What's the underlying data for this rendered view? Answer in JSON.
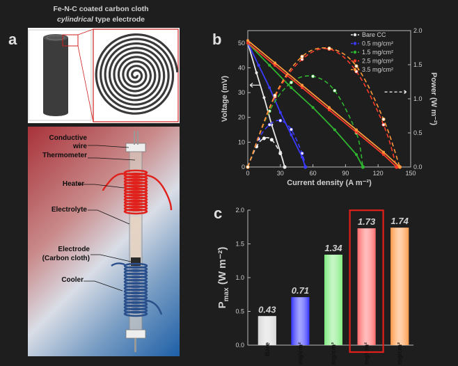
{
  "panel_a": {
    "letter": "a",
    "title_line1": "Fe-N-C coated carbon cloth",
    "title_line2_italic": "cylindrical",
    "title_line2_rest": " type electrode",
    "labels": {
      "wire": "Conductive",
      "wire2": "wire",
      "thermometer": "Thermometer",
      "heater": "Heater",
      "electrolyte": "Electrolyte",
      "electrode": "Electrode",
      "electrode2": "(Carbon cloth)",
      "cooler": "Cooler"
    },
    "colors": {
      "heater": "#e0201a",
      "cooler": "#2a4f8a"
    }
  },
  "chart_data": [
    {
      "panel": "b",
      "type": "line",
      "xlabel": "Current density (A m⁻²)",
      "ylabel_left": "Voltage (mV)",
      "ylabel_right": "Power (W m⁻²)",
      "xlim": [
        0,
        150
      ],
      "ylim_left": [
        0,
        55
      ],
      "ylim_right": [
        0,
        2.0
      ],
      "x_ticks": [
        "0",
        "30",
        "60",
        "90",
        "120",
        "150"
      ],
      "y_ticks_left": [
        "0",
        "10",
        "20",
        "30",
        "40",
        "50"
      ],
      "y_ticks_right": [
        "0.0",
        "0.5",
        "1.0",
        "1.5",
        "2.0"
      ],
      "legend": "top-right",
      "series": [
        {
          "name": "Bare CC",
          "color": "#e8e8e8",
          "voltage_x": [
            0,
            8,
            15,
            22,
            30,
            34
          ],
          "voltage_y": [
            50,
            38,
            28,
            17,
            6,
            0
          ],
          "power_x": [
            0,
            8,
            15,
            22,
            30,
            34
          ],
          "power_y": [
            0.0,
            0.3,
            0.42,
            0.4,
            0.2,
            0.0
          ]
        },
        {
          "name": "0.5 mg/cm²",
          "color": "#3a3aff",
          "voltage_x": [
            0,
            10,
            20,
            30,
            40,
            50,
            53
          ],
          "voltage_y": [
            50,
            41,
            32,
            22,
            13,
            4,
            0
          ],
          "power_x": [
            0,
            10,
            20,
            30,
            40,
            50,
            53
          ],
          "power_y": [
            0.0,
            0.41,
            0.62,
            0.68,
            0.55,
            0.2,
            0.0
          ]
        },
        {
          "name": "1.5 mg/cm²",
          "color": "#2fb52f",
          "voltage_x": [
            0,
            20,
            40,
            60,
            80,
            100,
            106
          ],
          "voltage_y": [
            50,
            41,
            32,
            24,
            15,
            5,
            0
          ],
          "power_x": [
            0,
            20,
            40,
            60,
            80,
            100,
            106
          ],
          "power_y": [
            0.0,
            0.82,
            1.24,
            1.33,
            1.12,
            0.5,
            0.0
          ]
        },
        {
          "name": "2.5 mg/cm²",
          "color": "#ff3a2a",
          "voltage_x": [
            0,
            25,
            50,
            75,
            100,
            125,
            137
          ],
          "voltage_y": [
            50,
            41,
            32,
            23,
            14,
            5,
            0
          ],
          "power_x": [
            0,
            25,
            50,
            75,
            100,
            125,
            137
          ],
          "power_y": [
            0.0,
            1.03,
            1.58,
            1.73,
            1.4,
            0.62,
            0.0
          ]
        },
        {
          "name": "3.5 mg/cm²",
          "color": "#ff9a3a",
          "voltage_x": [
            0,
            25,
            50,
            75,
            100,
            125,
            140
          ],
          "voltage_y": [
            51,
            42,
            33,
            24,
            15,
            6,
            0
          ],
          "power_x": [
            0,
            25,
            50,
            75,
            100,
            125,
            140
          ],
          "power_y": [
            0.0,
            1.05,
            1.62,
            1.74,
            1.48,
            0.7,
            0.0
          ]
        }
      ]
    },
    {
      "panel": "c",
      "type": "bar",
      "ylabel": "P",
      "ylabel_sub": "max",
      "ylabel_unit": "(W m⁻²)",
      "ylim": [
        0,
        2.0
      ],
      "y_ticks": [
        "0.0",
        "0.5",
        "1.0",
        "1.5",
        "2.0"
      ],
      "categories": [
        "Bare",
        "0.5 mg/cm²",
        "1.5 mg/cm²",
        "2.5 mg/cm²",
        "3.5 mg/cm²"
      ],
      "values": [
        0.43,
        0.71,
        1.34,
        1.73,
        1.74
      ],
      "value_labels": [
        "0.43",
        "0.71",
        "1.34",
        "1.73",
        "1.74"
      ],
      "colors": [
        "#d8d8d8",
        "#3333ff",
        "#7dea7d",
        "#ff6b6b",
        "#ff9a4a"
      ],
      "highlighted_index": 3,
      "highlight_color": "#e0201a"
    }
  ],
  "panel_letters": {
    "b": "b",
    "c": "c"
  }
}
